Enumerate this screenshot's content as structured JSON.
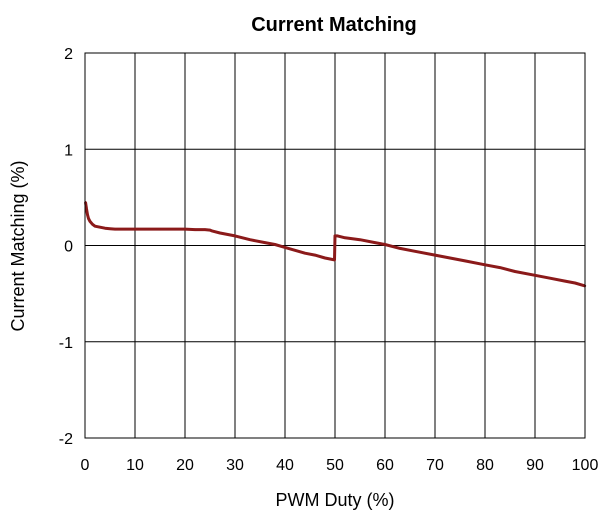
{
  "chart_data": {
    "type": "line",
    "title": "Current Matching",
    "xlabel": "PWM Duty (%)",
    "ylabel": "Current Matching  (%)",
    "xlim": [
      0,
      100
    ],
    "ylim": [
      -2,
      2
    ],
    "xticks": [
      "0",
      "10",
      "20",
      "30",
      "40",
      "50",
      "60",
      "70",
      "80",
      "90",
      "100"
    ],
    "yticks": [
      "2",
      "1",
      "0",
      "-1",
      "-2"
    ],
    "grid": true,
    "legend": "none",
    "series": [
      {
        "color": "#8b1a1a",
        "x": [
          0.1,
          0.3,
          0.5,
          0.7,
          1,
          1.5,
          2,
          3,
          4,
          5,
          6,
          8,
          10,
          12,
          15,
          18,
          20,
          22,
          24,
          25,
          25.5,
          27,
          30,
          33,
          36,
          38,
          40,
          42,
          44,
          46,
          48,
          49.9,
          50,
          50.5,
          52,
          55,
          58,
          60,
          63,
          66,
          70,
          73,
          76,
          80,
          83,
          86,
          90,
          93,
          96,
          98,
          100
        ],
        "y": [
          0.45,
          0.38,
          0.32,
          0.28,
          0.25,
          0.22,
          0.2,
          0.19,
          0.18,
          0.175,
          0.17,
          0.17,
          0.17,
          0.17,
          0.17,
          0.17,
          0.17,
          0.165,
          0.165,
          0.16,
          0.15,
          0.13,
          0.1,
          0.06,
          0.03,
          0.01,
          -0.02,
          -0.05,
          -0.08,
          -0.1,
          -0.13,
          -0.15,
          0.1,
          0.1,
          0.08,
          0.06,
          0.03,
          0.01,
          -0.03,
          -0.06,
          -0.1,
          -0.13,
          -0.16,
          -0.2,
          -0.23,
          -0.27,
          -0.31,
          -0.34,
          -0.37,
          -0.39,
          -0.42
        ]
      }
    ]
  }
}
